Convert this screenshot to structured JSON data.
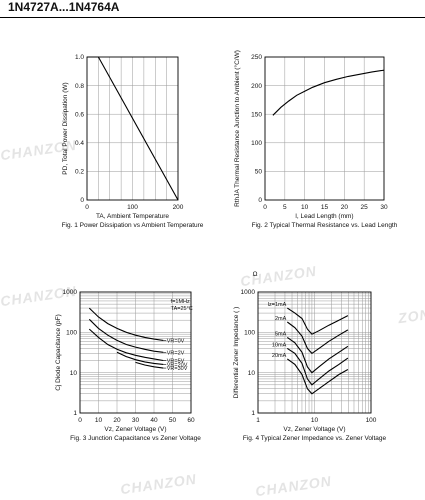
{
  "doc": {
    "title": "1N4727A...1N4764A"
  },
  "watermarks": [
    "CHANZON",
    "CHANZON",
    "CHANZON",
    "CHANZON",
    "CHANZON",
    "ZON"
  ],
  "colors": {
    "line": "#000000",
    "grid": "#9a9a9a",
    "watermark": "#e4e4e4"
  },
  "chart_data": [
    {
      "type": "line",
      "caption": "Fig. 1 Power Dissipation vs Ambient Temperature",
      "xlabel": "TA, Ambient Temperature",
      "ylabel": "PD, Total Power Dissipation (W)",
      "xlim": [
        0,
        200
      ],
      "ylim": [
        0,
        1.0
      ],
      "xticks": [
        0,
        100,
        200
      ],
      "xtick_labels": [
        "0",
        "100",
        "200"
      ],
      "yticks": [
        0,
        0.2,
        0.4,
        0.6,
        0.8,
        1.0
      ],
      "ytick_labels": [
        "0",
        "0.2",
        "0.4",
        "0.6",
        "0.8",
        "1.0"
      ],
      "grid": true,
      "series": [
        {
          "x": [
            0,
            25,
            200
          ],
          "y": [
            1.0,
            1.0,
            0
          ]
        }
      ]
    },
    {
      "type": "line",
      "caption": "Fig. 2 Typical Thermal Resistance vs. Lead Length",
      "xlabel": "l, Lead Length (mm)",
      "ylabel": "RthJA Thermal Resistance Junction to Ambient (°C/W)",
      "xlim": [
        0,
        30
      ],
      "ylim": [
        0,
        250
      ],
      "xticks": [
        0,
        5,
        10,
        15,
        20,
        25,
        30
      ],
      "xtick_labels": [
        "0",
        "5",
        "10",
        "15",
        "20",
        "25",
        "30"
      ],
      "yticks": [
        0,
        50,
        100,
        150,
        200,
        250
      ],
      "ytick_labels": [
        "0",
        "50",
        "100",
        "150",
        "200",
        "250"
      ],
      "grid": true,
      "series": [
        {
          "x": [
            2,
            4,
            6,
            8,
            10,
            12,
            15,
            18,
            21,
            24,
            27,
            30
          ],
          "y": [
            148,
            162,
            173,
            183,
            190,
            197,
            205,
            211,
            216,
            220,
            224,
            227
          ]
        }
      ]
    },
    {
      "type": "line",
      "caption": "Fig. 3 Junction Capacitance vs Zener Voltage",
      "xlabel": "Vz, Zener Voltage (V)",
      "ylabel": "Cj Diode Capacitance (pF)",
      "xlim": [
        0,
        60
      ],
      "ylim": [
        1,
        1000
      ],
      "yscale": "log",
      "xticks": [
        0,
        10,
        20,
        30,
        40,
        50,
        60
      ],
      "xtick_labels": [
        "0",
        "10",
        "20",
        "30",
        "40",
        "50",
        "60"
      ],
      "yticks": [
        1,
        10,
        100,
        1000
      ],
      "ytick_labels": [
        "1",
        "10",
        "100",
        "1000"
      ],
      "grid": true,
      "annotations": [
        "f=1MHz",
        "TA=25°C"
      ],
      "series": [
        {
          "name": "VR=0V",
          "x": [
            5,
            10,
            15,
            20,
            25,
            30,
            35,
            40,
            45
          ],
          "y": [
            400,
            240,
            165,
            125,
            100,
            85,
            75,
            68,
            63
          ]
        },
        {
          "name": "VR=2V",
          "x": [
            5,
            10,
            15,
            20,
            25,
            30,
            35,
            40,
            45
          ],
          "y": [
            210,
            125,
            85,
            63,
            50,
            43,
            38,
            34,
            32
          ]
        },
        {
          "name": "VR=5V",
          "x": [
            5,
            10,
            15,
            20,
            25,
            30,
            35,
            40,
            45
          ],
          "y": [
            120,
            75,
            50,
            38,
            31,
            27,
            24,
            22,
            20
          ]
        },
        {
          "name": "VR=20V",
          "x": [
            20,
            25,
            30,
            35,
            40,
            45
          ],
          "y": [
            32,
            25,
            21,
            18.5,
            17,
            16
          ]
        },
        {
          "name": "VR=30V",
          "x": [
            30,
            35,
            40,
            45
          ],
          "y": [
            18,
            15.5,
            14,
            13
          ]
        }
      ]
    },
    {
      "type": "line",
      "caption": "Fig. 4 Typical Zener Impedance vs. Zener Voltage",
      "xlabel": "Vz, Zener Voltage (V)",
      "ylabel": "Differential Zener Impedance ( )",
      "xlim": [
        1,
        100
      ],
      "ylim": [
        1,
        1000
      ],
      "xscale": "log",
      "yscale": "log",
      "xticks": [
        1,
        10,
        100
      ],
      "xtick_labels": [
        "1",
        "10",
        "100"
      ],
      "yticks": [
        1,
        10,
        100,
        1000
      ],
      "ytick_labels": [
        "1",
        "10",
        "100",
        "1000"
      ],
      "grid": true,
      "corner_label": "Ω",
      "series": [
        {
          "name": "Iz=1mA",
          "x": [
            3.3,
            4.5,
            6,
            7.5,
            9,
            12,
            18,
            27,
            39
          ],
          "y": [
            400,
            300,
            220,
            120,
            90,
            110,
            150,
            200,
            260
          ]
        },
        {
          "name": "2mA",
          "x": [
            3.3,
            4.5,
            6,
            7.5,
            9,
            12,
            18,
            27,
            39
          ],
          "y": [
            180,
            130,
            80,
            40,
            30,
            40,
            60,
            85,
            115
          ]
        },
        {
          "name": "5mA",
          "x": [
            3.3,
            4.5,
            6,
            7.5,
            9,
            12,
            18,
            27,
            39
          ],
          "y": [
            75,
            55,
            32,
            14,
            10,
            14,
            22,
            32,
            45
          ]
        },
        {
          "name": "10mA",
          "x": [
            3.3,
            4.5,
            6,
            7.5,
            9,
            12,
            18,
            27,
            39
          ],
          "y": [
            40,
            30,
            17,
            7,
            5,
            7,
            11,
            16,
            23
          ]
        },
        {
          "name": "20mA",
          "x": [
            3.3,
            4.5,
            6,
            7.5,
            9,
            12,
            18,
            27,
            39
          ],
          "y": [
            22,
            16,
            9,
            4,
            3,
            4,
            6,
            9,
            12
          ]
        }
      ]
    }
  ]
}
